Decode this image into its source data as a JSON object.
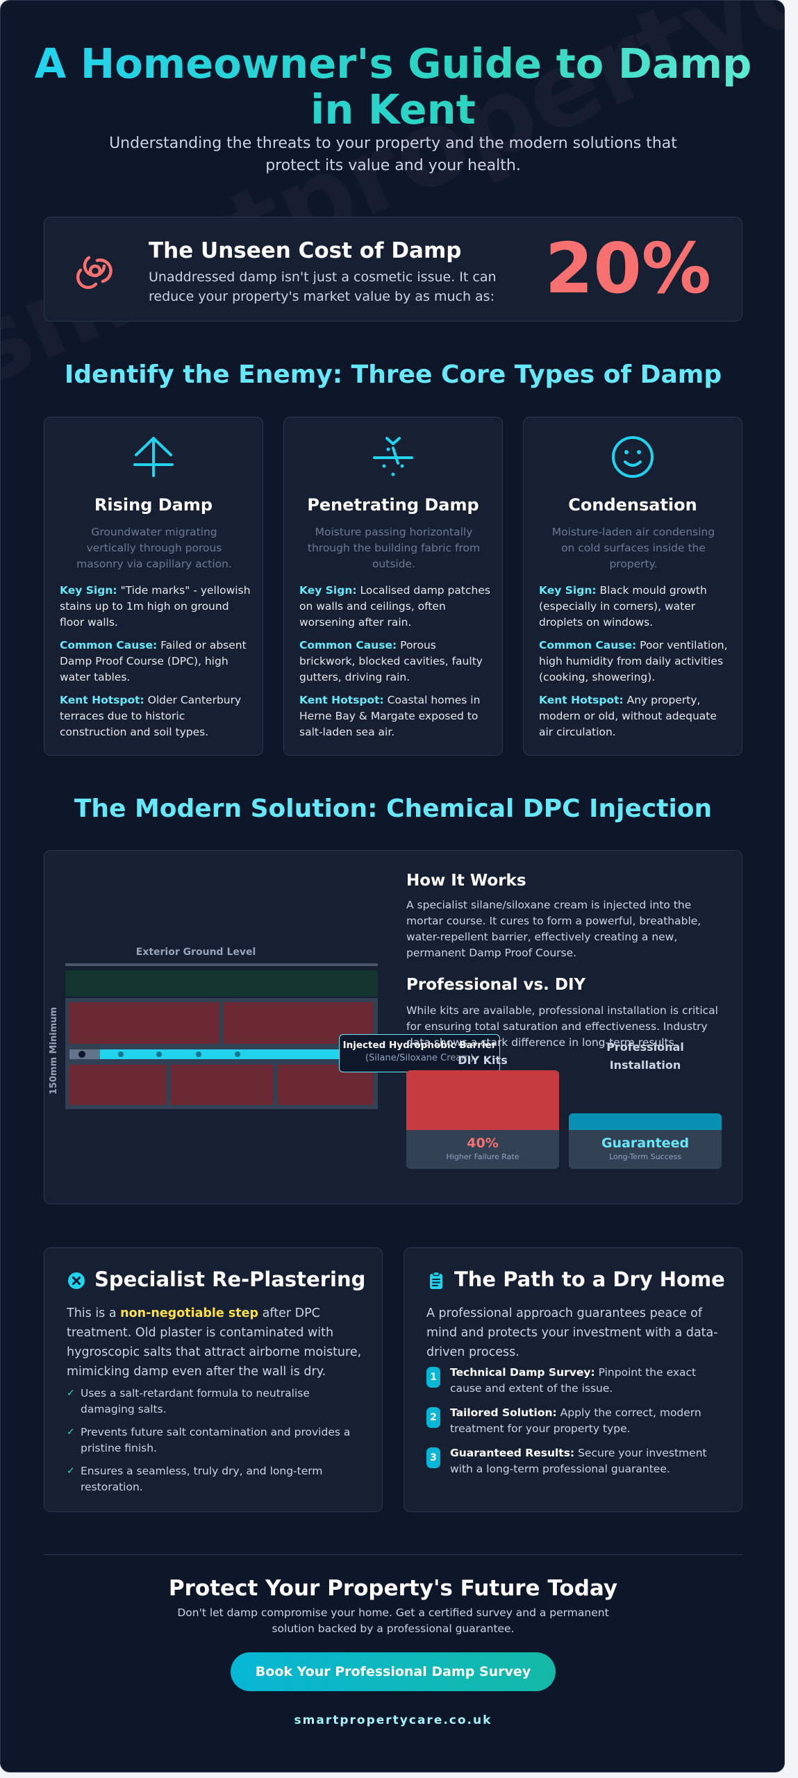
{
  "watermark": "smartpropertycare.co",
  "header": {
    "title": "A Homeowner's Guide to Damp in Kent",
    "subtitle": "Understanding the threats to your property and the modern solutions that protect its value and your health."
  },
  "cost": {
    "icon": "biohazard-icon",
    "title": "The Unseen Cost of Damp",
    "text": "Unaddressed damp isn't just a cosmetic issue. It can reduce your property's market value by as much as:",
    "stat": "20%"
  },
  "types": {
    "section_title": "Identify the Enemy: Three Core Types of Damp",
    "items": [
      {
        "icon": "arrow-up-icon",
        "name": "Rising Damp",
        "desc": "Groundwater migrating vertically through porous masonry via capillary action.",
        "sign_label": "Key Sign:",
        "sign": "\"Tide marks\" - yellowish stains up to 1m high on ground floor walls.",
        "cause_label": "Common Cause:",
        "cause": "Failed or absent Damp Proof Course (DPC), high water tables.",
        "hotspot_label": "Kent Hotspot:",
        "hotspot": "Older Canterbury terraces due to historic construction and soil types."
      },
      {
        "icon": "rain-icon",
        "name": "Penetrating Damp",
        "desc": "Moisture passing horizontally through the building fabric from outside.",
        "sign_label": "Key Sign:",
        "sign": "Localised damp patches on walls and ceilings, often worsening after rain.",
        "cause_label": "Common Cause:",
        "cause": "Porous brickwork, blocked cavities, faulty gutters, driving rain.",
        "hotspot_label": "Kent Hotspot:",
        "hotspot": "Coastal homes in Herne Bay & Margate exposed to salt-laden sea air."
      },
      {
        "icon": "smiley-icon",
        "name": "Condensation",
        "desc": "Moisture-laden air condensing on cold surfaces inside the property.",
        "sign_label": "Key Sign:",
        "sign": "Black mould growth (especially in corners), water droplets on windows.",
        "cause_label": "Common Cause:",
        "cause": "Poor ventilation, high humidity from daily activities (cooking, showering).",
        "hotspot_label": "Kent Hotspot:",
        "hotspot": "Any property, modern or old, without adequate air circulation."
      }
    ]
  },
  "solution": {
    "section_title": "The Modern Solution: Chemical DPC Injection",
    "diagram": {
      "ground_label": "Exterior Ground Level",
      "min_label": "150mm Minimum",
      "barrier_label": "Injected Hydrophobic Barrier",
      "barrier_sub": "(Silane/Siloxane Cream)"
    },
    "how_title": "How It Works",
    "how_text": "A specialist silane/siloxane cream is injected into the mortar course. It cures to form a powerful, breathable, water-repellent barrier, effectively creating a new, permanent Damp Proof Course.",
    "pro_title": "Professional vs. DIY",
    "pro_text": "While kits are available, professional installation is critical for ensuring total saturation and effectiveness. Industry data shows a stark difference in long-term results.",
    "bars": [
      {
        "label": "DIY Kits",
        "value": "40%",
        "caption": "Higher Failure Rate",
        "color": "#c53b3f",
        "value_color": "#f87171",
        "level": 1.0
      },
      {
        "label": "Professional Installation",
        "value": "Guaranteed",
        "caption": "Long-Term Success",
        "color": "#0891b2",
        "value_color": "#67e8f9",
        "level": 0.28
      }
    ]
  },
  "plaster": {
    "icon": "close-circle-icon",
    "title": "Specialist Re-Plastering",
    "intro_a": "This is a ",
    "intro_highlight": "non-negotiable step",
    "intro_b": " after DPC treatment. Old plaster is contaminated with hygroscopic salts that attract airborne moisture, mimicking damp even after the wall is dry.",
    "points": [
      "Uses a salt-retardant formula to neutralise damaging salts.",
      "Prevents future salt contamination and provides a pristine finish.",
      "Ensures a seamless, truly dry, and long-term restoration."
    ]
  },
  "path": {
    "icon": "clipboard-icon",
    "title": "The Path to a Dry Home",
    "intro": "A professional approach guarantees peace of mind and protects your investment with a data-driven process.",
    "steps": [
      {
        "num": "1",
        "title": "Technical Damp Survey:",
        "text": " Pinpoint the exact cause and extent of the issue."
      },
      {
        "num": "2",
        "title": "Tailored Solution:",
        "text": " Apply the correct, modern treatment for your property type."
      },
      {
        "num": "3",
        "title": "Guaranteed Results:",
        "text": " Secure your investment with a long-term professional guarantee."
      }
    ]
  },
  "cta": {
    "title": "Protect Your Property's Future Today",
    "text": "Don't let damp compromise your home. Get a certified survey and a permanent solution backed by a professional guarantee.",
    "button": "Book Your Professional Damp Survey",
    "footer": "smartpropertycare.co.uk"
  }
}
